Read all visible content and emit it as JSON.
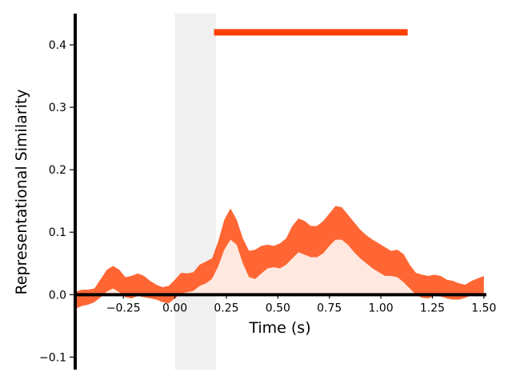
{
  "chart_data": {
    "type": "area",
    "title": "",
    "xlabel": "Time (s)",
    "ylabel": "Representational Similarity",
    "xlim": [
      -0.48,
      1.52
    ],
    "ylim": [
      -0.12,
      0.45
    ],
    "x_ticks": [
      -0.25,
      0.0,
      0.25,
      0.5,
      0.75,
      1.0,
      1.25,
      1.5
    ],
    "x_tick_labels": [
      "−0.25",
      "0.00",
      "0.25",
      "0.50",
      "0.75",
      "1.00",
      "1.25",
      "1.50"
    ],
    "y_ticks": [
      -0.1,
      0.0,
      0.1,
      0.2,
      0.3,
      0.4
    ],
    "y_tick_labels": [
      "−0.1",
      "0.0",
      "0.1",
      "0.2",
      "0.3",
      "0.4"
    ],
    "grid": false,
    "shaded_interval": {
      "x": [
        0.0,
        0.2
      ],
      "color": "#f0f0f0"
    },
    "significance_bar": {
      "x": [
        0.19,
        1.13
      ],
      "y": 0.42,
      "color": "#ff4000"
    },
    "series": [
      {
        "fill_color": "#ffe8e0",
        "band_color": "#ff6633",
        "x": [
          -0.48,
          -0.45,
          -0.42,
          -0.39,
          -0.36,
          -0.33,
          -0.3,
          -0.27,
          -0.24,
          -0.21,
          -0.18,
          -0.15,
          -0.12,
          -0.09,
          -0.06,
          -0.03,
          0.0,
          0.03,
          0.06,
          0.09,
          0.12,
          0.15,
          0.18,
          0.21,
          0.24,
          0.27,
          0.3,
          0.33,
          0.36,
          0.39,
          0.42,
          0.45,
          0.48,
          0.51,
          0.54,
          0.57,
          0.6,
          0.63,
          0.66,
          0.69,
          0.72,
          0.75,
          0.78,
          0.81,
          0.84,
          0.87,
          0.9,
          0.93,
          0.96,
          0.99,
          1.02,
          1.05,
          1.08,
          1.11,
          1.14,
          1.17,
          1.2,
          1.23,
          1.26,
          1.29,
          1.32,
          1.35,
          1.38,
          1.41,
          1.44,
          1.47,
          1.5
        ],
        "mean": [
          -0.008,
          -0.005,
          -0.006,
          -0.003,
          0.008,
          0.02,
          0.025,
          0.018,
          0.008,
          0.005,
          0.01,
          0.008,
          0.005,
          0.003,
          -0.003,
          -0.005,
          0.005,
          0.015,
          0.016,
          0.018,
          0.028,
          0.032,
          0.04,
          0.06,
          0.087,
          0.105,
          0.095,
          0.065,
          0.043,
          0.04,
          0.048,
          0.058,
          0.058,
          0.057,
          0.063,
          0.072,
          0.085,
          0.09,
          0.082,
          0.08,
          0.088,
          0.1,
          0.112,
          0.113,
          0.105,
          0.092,
          0.08,
          0.07,
          0.062,
          0.055,
          0.048,
          0.045,
          0.047,
          0.04,
          0.025,
          0.012,
          0.005,
          0.004,
          0.008,
          0.008,
          0.005,
          0.003,
          0.002,
          0.005,
          0.01,
          0.012,
          0.01
        ],
        "lower": [
          -0.022,
          -0.018,
          -0.016,
          -0.012,
          -0.004,
          0.005,
          0.01,
          0.004,
          -0.004,
          -0.006,
          -0.002,
          -0.004,
          -0.006,
          -0.008,
          -0.012,
          -0.014,
          -0.006,
          0.002,
          0.004,
          0.006,
          0.014,
          0.018,
          0.025,
          0.045,
          0.072,
          0.088,
          0.08,
          0.05,
          0.028,
          0.025,
          0.034,
          0.042,
          0.044,
          0.042,
          0.048,
          0.058,
          0.068,
          0.064,
          0.06,
          0.06,
          0.066,
          0.078,
          0.088,
          0.088,
          0.08,
          0.068,
          0.058,
          0.05,
          0.042,
          0.036,
          0.03,
          0.03,
          0.028,
          0.02,
          0.01,
          0.0,
          -0.005,
          -0.006,
          -0.002,
          -0.003,
          -0.006,
          -0.008,
          -0.008,
          -0.005,
          -0.001,
          0.0,
          -0.002
        ],
        "upper": [
          0.005,
          0.008,
          0.008,
          0.01,
          0.025,
          0.04,
          0.046,
          0.04,
          0.028,
          0.03,
          0.034,
          0.03,
          0.022,
          0.016,
          0.012,
          0.014,
          0.024,
          0.035,
          0.034,
          0.036,
          0.048,
          0.053,
          0.058,
          0.085,
          0.12,
          0.138,
          0.12,
          0.09,
          0.07,
          0.072,
          0.078,
          0.08,
          0.078,
          0.082,
          0.09,
          0.11,
          0.122,
          0.118,
          0.11,
          0.11,
          0.118,
          0.13,
          0.142,
          0.14,
          0.128,
          0.116,
          0.104,
          0.095,
          0.088,
          0.082,
          0.076,
          0.07,
          0.072,
          0.065,
          0.048,
          0.035,
          0.032,
          0.03,
          0.032,
          0.03,
          0.024,
          0.022,
          0.018,
          0.016,
          0.022,
          0.026,
          0.03
        ]
      }
    ]
  }
}
